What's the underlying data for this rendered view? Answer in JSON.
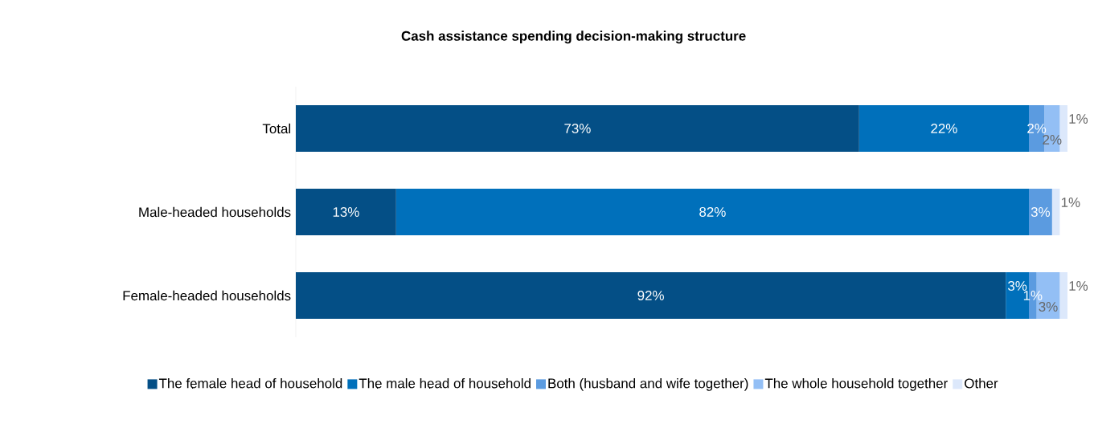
{
  "chart_data": {
    "type": "bar",
    "orientation": "horizontal",
    "stacked": true,
    "title": "Cash assistance spending decision-making structure",
    "categories": [
      "Total",
      "Male-headed households",
      "Female-headed households"
    ],
    "xlim": [
      0,
      100
    ],
    "tick_labels": "y",
    "legend": "bottom",
    "series": [
      {
        "name": "The female head of household",
        "color": "#044f86",
        "values": [
          73,
          13,
          92
        ],
        "value_labels": [
          "73%",
          "13%",
          "92%"
        ]
      },
      {
        "name": "The male head of household",
        "color": "#0070bb",
        "values": [
          22,
          82,
          3
        ],
        "value_labels": [
          "22%",
          "82%",
          "3%"
        ]
      },
      {
        "name": "Both (husband and wife together)",
        "color": "#5b9be0",
        "values": [
          2,
          3,
          1
        ],
        "value_labels": [
          "2%",
          "3%",
          "1%"
        ]
      },
      {
        "name": "The whole household together",
        "color": "#93bff5",
        "values": [
          2,
          0,
          3
        ],
        "value_labels": [
          "2%",
          null,
          "3%"
        ]
      },
      {
        "name": "Other",
        "color": "#dce8fb",
        "values": [
          1,
          1,
          1
        ],
        "value_labels": [
          "1%",
          "1%",
          "1%"
        ]
      }
    ]
  }
}
